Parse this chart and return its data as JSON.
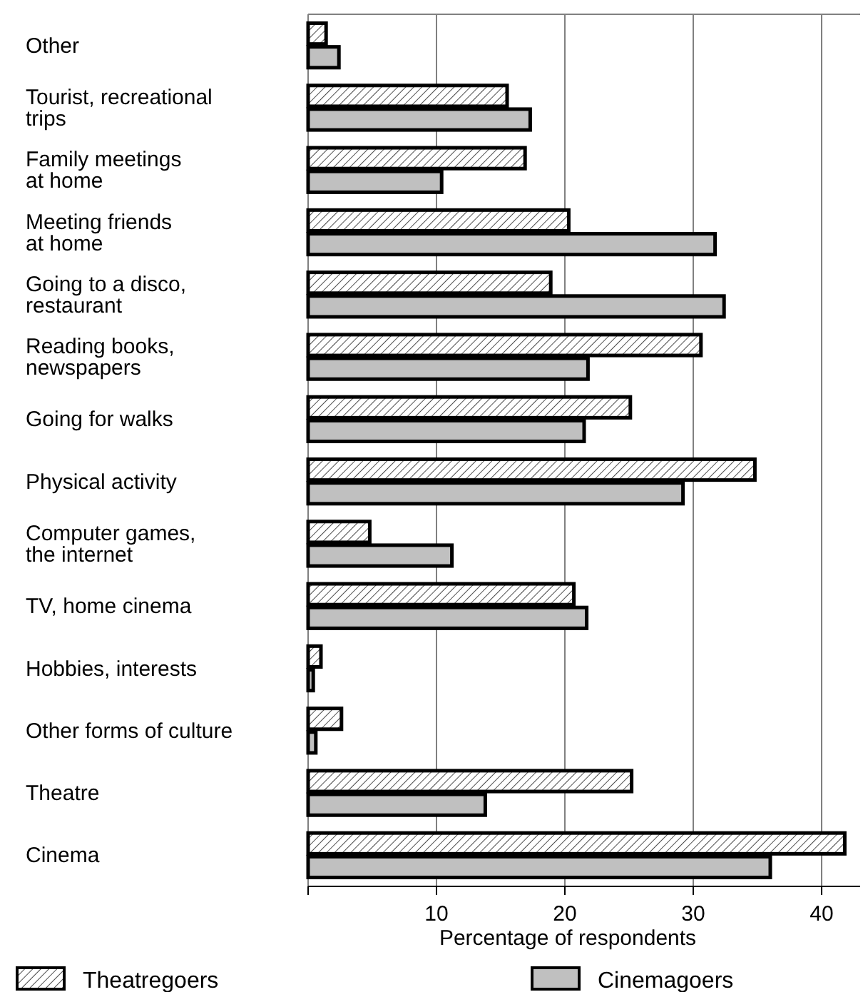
{
  "chart_data": {
    "type": "bar",
    "orientation": "horizontal",
    "xlabel": "Percentage of respondents",
    "categories": [
      "Other",
      "Tourist, recreational\ntrips",
      "Family meetings\nat home",
      "Meeting friends\nat home",
      "Going to a disco,\nrestaurant",
      "Reading books,\nnewspapers",
      "Going for walks",
      "Physical activity",
      "Computer games,\nthe internet",
      "TV, home cinema",
      "Hobbies, interests",
      "Other forms of culture",
      "Theatre",
      "Cinema"
    ],
    "series": [
      {
        "name": "Theatregoers",
        "color": "#000000",
        "values": [
          1.4,
          15.5,
          16.9,
          20.3,
          18.9,
          30.6,
          25.1,
          34.8,
          4.8,
          20.7,
          1.0,
          2.6,
          25.2,
          41.8
        ]
      },
      {
        "name": "Cinemagoers",
        "color": "#c0c0c0",
        "values": [
          2.4,
          17.3,
          10.4,
          31.7,
          32.4,
          21.8,
          21.5,
          29.2,
          11.2,
          21.7,
          0.4,
          0.6,
          13.8,
          36.0
        ]
      }
    ],
    "xlim": [
      0,
      43
    ],
    "xticks": [
      {
        "value": 0,
        "label": null
      },
      10,
      20,
      30,
      40
    ],
    "grid": "x",
    "legend": "bottom"
  }
}
